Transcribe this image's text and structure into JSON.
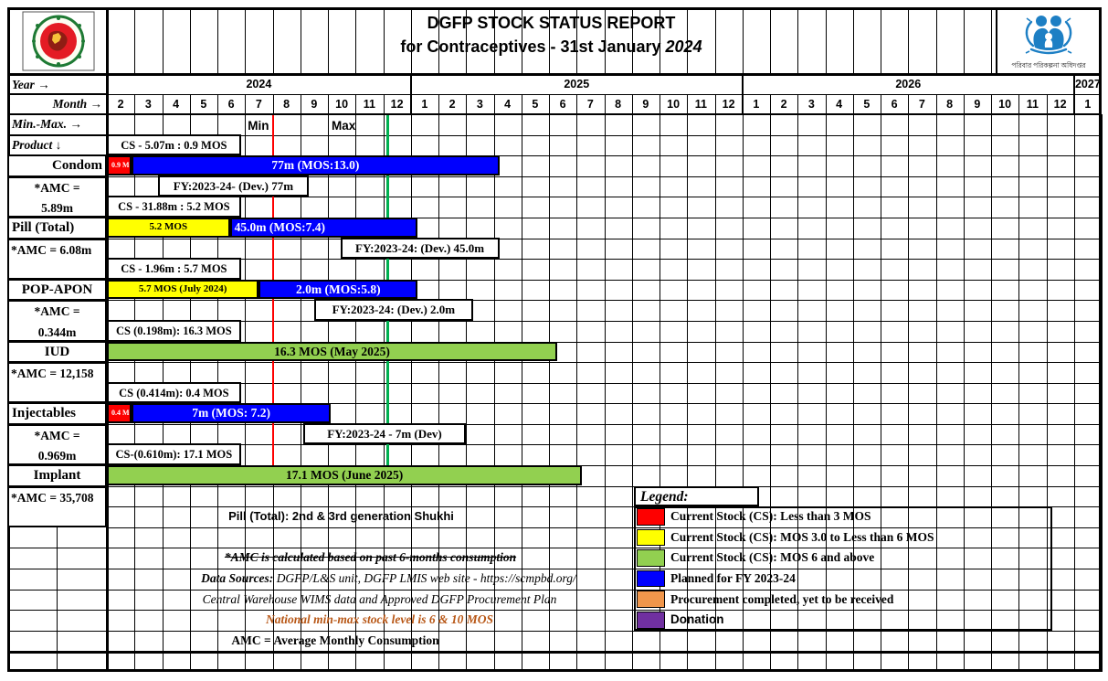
{
  "header": {
    "title_line1": "DGFP STOCK STATUS REPORT",
    "title_line2_prefix": "for Contraceptives - 31st January ",
    "title_line2_year": "2024",
    "left_logo": "bangladesh-government-emblem",
    "right_logo": "family-planning-directorate-emblem",
    "right_logo_caption": "পরিবার পরিকল্পনা অধিদপ্তর"
  },
  "axis": {
    "year_label": "Year  →",
    "month_label": "Month →",
    "minmax_label": "Min.-Max.  →",
    "product_label": "Product ↓",
    "years": [
      {
        "label": "2024",
        "span": 11
      },
      {
        "label": "2025",
        "span": 12
      },
      {
        "label": "2026",
        "span": 12
      },
      {
        "label": "2027",
        "span": 1
      }
    ],
    "months": [
      "2",
      "3",
      "4",
      "5",
      "6",
      "7",
      "8",
      "9",
      "10",
      "11",
      "12",
      "1",
      "2",
      "3",
      "4",
      "5",
      "6",
      "7",
      "8",
      "9",
      "10",
      "11",
      "12",
      "1",
      "2",
      "3",
      "4",
      "5",
      "6",
      "7",
      "8",
      "9",
      "10",
      "11",
      "12",
      "1"
    ],
    "min_marker": {
      "label": "Min",
      "col": 6,
      "color": "#fe0000"
    },
    "max_marker": {
      "label": "Max",
      "col": 10.15,
      "color": "#00b050"
    }
  },
  "products": [
    {
      "name": "Condom",
      "amc": [
        "*AMC =",
        "5.89m"
      ],
      "cs_note": {
        "text": "CS - 5.07m : 0.9 MOS",
        "from": 0,
        "to": 4.85
      },
      "bars": [
        {
          "color": "#fe0000",
          "from": 0,
          "to": 0.9,
          "label": "0.9 MOS",
          "text": "#ffffff",
          "size": 8,
          "align": "left"
        },
        {
          "color": "#0000fe",
          "from": 0.9,
          "to": 14.2,
          "label": "77m (MOS:13.0)",
          "text": "#ffffff"
        }
      ],
      "fy_note": {
        "text": "FY:2023-24- (Dev.) 77m",
        "from": 1.85,
        "to": 7.3
      }
    },
    {
      "name": "Pill (Total)",
      "amc": [
        "*AMC = 6.08m"
      ],
      "cs_note": {
        "text": "CS - 31.88m : 5.2 MOS",
        "from": 0,
        "to": 4.85
      },
      "bars": [
        {
          "color": "#ffff00",
          "from": 0,
          "to": 4.45,
          "label": "5.2 MOS",
          "text": "#000000",
          "size": 11
        },
        {
          "color": "#0000fe",
          "from": 4.45,
          "to": 11.25,
          "label": "45.0m (MOS:7.4)",
          "text": "#ffffff",
          "align": "left"
        }
      ],
      "fy_note": {
        "text": "FY:2023-24: (Dev.)  45.0m",
        "from": 8.45,
        "to": 14.2
      }
    },
    {
      "name": "POP-APON",
      "amc": [
        "*AMC =",
        "0.344m"
      ],
      "cs_note": {
        "text": "CS - 1.96m : 5.7 MOS",
        "from": 0,
        "to": 4.85
      },
      "bars": [
        {
          "color": "#ffff00",
          "from": 0,
          "to": 5.5,
          "label": "5.7 MOS (July 2024)",
          "text": "#000000",
          "size": 11
        },
        {
          "color": "#0000fe",
          "from": 5.5,
          "to": 11.25,
          "label": "2.0m (MOS:5.8)",
          "text": "#ffffff"
        }
      ],
      "fy_note": {
        "text": "FY:2023-24: (Dev.) 2.0m",
        "from": 7.5,
        "to": 13.25
      }
    },
    {
      "name": "IUD",
      "amc": [
        "*AMC = 12,158"
      ],
      "cs_note": {
        "text": "CS (0.198m): 16.3 MOS",
        "from": 0,
        "to": 4.85
      },
      "bars": [
        {
          "color": "#92d050",
          "from": 0,
          "to": 16.3,
          "label": "16.3 MOS (May 2025)",
          "text": "#000000"
        }
      ],
      "fy_note": null
    },
    {
      "name": "Injectables",
      "amc": [
        "*AMC =",
        "0.969m"
      ],
      "cs_note": {
        "text": "CS (0.414m): 0.4 MOS",
        "from": 0,
        "to": 4.85
      },
      "bars": [
        {
          "color": "#fe0000",
          "from": 0,
          "to": 0.9,
          "label": "0.4 MOS",
          "text": "#ffffff",
          "size": 8,
          "align": "left"
        },
        {
          "color": "#0000fe",
          "from": 0.9,
          "to": 8.1,
          "label": "7m (MOS: 7.2)",
          "text": "#ffffff"
        }
      ],
      "fy_note": {
        "text": "FY:2023-24 - 7m (Dev)",
        "from": 7.1,
        "to": 13.0
      }
    },
    {
      "name": "Implant",
      "amc": [
        "*AMC = 35,708"
      ],
      "cs_note": {
        "text": "CS-(0.610m): 17.1 MOS",
        "from": 0,
        "to": 4.85
      },
      "bars": [
        {
          "color": "#92d050",
          "from": 0,
          "to": 17.2,
          "label": "17.1 MOS (June 2025)",
          "text": "#000000"
        }
      ],
      "fy_note": null
    }
  ],
  "legend": {
    "title": "Legend:",
    "items": [
      {
        "color": "#fe0000",
        "label": "Current Stock (CS): Less than 3 MOS"
      },
      {
        "color": "#ffff00",
        "label": "Current Stock (CS): MOS 3.0 to Less than 6 MOS"
      },
      {
        "color": "#92d050",
        "label": "Current Stock (CS): MOS 6 and above"
      },
      {
        "color": "#0000fe",
        "label": "Planned for FY 2023-24"
      },
      {
        "color": "#f0964b",
        "label": "Procurement completed, yet to be received"
      },
      {
        "color": "#7030a0",
        "label": "Donation",
        "sans": true
      }
    ]
  },
  "notes": [
    {
      "text": "Pill (Total): 2nd & 3rd generation Shukhi",
      "style": "pill"
    },
    {
      "text": "*AMC is calculated based on past 6-months consumption",
      "style": "strike"
    },
    {
      "prefix": "Data Sources:",
      "text": " DGFP/L&S unit, DGFP LMIS web site -  https://scmpbd.org/",
      "style": "source"
    },
    {
      "text": "Central Warehouse WIMS data and Approved DGFP Procurement Plan",
      "style": "italic"
    },
    {
      "text": "National min-max stock level is 6 & 10 MOS",
      "style": "national",
      "color": "#b85716"
    },
    {
      "text": "AMC = Average Monthly Consumption",
      "style": "bold"
    }
  ],
  "chart_data": {
    "type": "table",
    "title": "DGFP STOCK STATUS REPORT for Contraceptives - 31st January 2024",
    "timeline": {
      "years": [
        2024,
        2025,
        2026,
        2027
      ],
      "start": "2024-02",
      "end": "2027-01",
      "unit": "month"
    },
    "min_max_policy": {
      "min": "6 MOS (Min line at end of July 2024)",
      "max": "10 MOS (Max line at end of November 2024)"
    },
    "rows": [
      {
        "product": "Condom",
        "amc": "5.89m",
        "current_stock": "5.07m",
        "current_mos": 0.9,
        "stock_status_color": "red",
        "planned_fy_2023_24": "77m (MOS:13.0) (Dev.)"
      },
      {
        "product": "Pill (Total)",
        "amc": "6.08m",
        "current_stock": "31.88m",
        "current_mos": 5.2,
        "stock_status_color": "yellow",
        "planned_fy_2023_24": "45.0m (MOS:7.4) (Dev.)"
      },
      {
        "product": "POP-APON",
        "amc": "0.344m",
        "current_stock": "1.96m",
        "current_mos": 5.7,
        "stock_status_color": "yellow",
        "stock_until": "July 2024",
        "planned_fy_2023_24": "2.0m (MOS:5.8) (Dev.)"
      },
      {
        "product": "IUD",
        "amc": "12,158",
        "current_stock": "0.198m",
        "current_mos": 16.3,
        "stock_status_color": "green",
        "stock_until": "May 2025"
      },
      {
        "product": "Injectables",
        "amc": "0.969m",
        "current_stock": "0.414m",
        "current_mos": 0.4,
        "stock_status_color": "red",
        "planned_fy_2023_24": "7m (MOS: 7.2) (Dev)"
      },
      {
        "product": "Implant",
        "amc": "35,708",
        "current_stock": "0.610m",
        "current_mos": 17.1,
        "stock_status_color": "green",
        "stock_until": "June 2025"
      }
    ],
    "legend_meaning": [
      "red = CS less than 3 MOS",
      "yellow = CS 3.0 to less than 6 MOS",
      "green = CS 6 MOS and above",
      "blue = planned FY 2023-24",
      "orange = procurement completed not received",
      "purple = donation"
    ]
  }
}
